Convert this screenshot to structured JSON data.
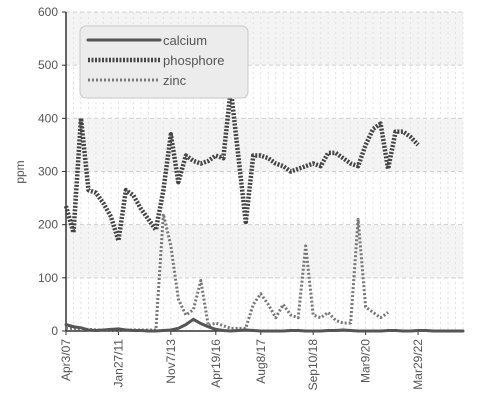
{
  "chart_data": {
    "type": "line",
    "ylabel": "ppm",
    "ylim": [
      0,
      600
    ],
    "yticks": [
      0,
      100,
      200,
      300,
      400,
      500,
      600
    ],
    "xtick_labels": [
      "Apr3/07",
      "Jan27/11",
      "Nov7/13",
      "Apr19/16",
      "Aug8/17",
      "Sep10/18",
      "Mar9/20",
      "Mar29/22"
    ],
    "xtick_index": [
      0,
      7,
      14,
      20,
      26,
      33,
      40,
      47
    ],
    "grid": true,
    "legend_position": "top-left",
    "series": [
      {
        "name": "calcium",
        "color": "#555555",
        "style": "solid",
        "values": [
          12,
          8,
          6,
          2,
          1,
          2,
          3,
          4,
          2,
          1,
          1,
          0,
          0,
          1,
          2,
          5,
          12,
          22,
          14,
          8,
          3,
          1,
          0,
          1,
          2,
          1,
          0,
          0,
          0,
          0,
          1,
          1,
          0,
          0,
          0,
          1,
          1,
          2,
          1,
          0,
          0,
          0,
          0,
          1,
          1,
          0,
          0,
          1,
          1,
          0,
          0,
          0,
          0,
          0
        ]
      },
      {
        "name": "phosphore",
        "color": "#444444",
        "style": "dense-dotted",
        "values": [
          235,
          185,
          400,
          265,
          260,
          240,
          215,
          170,
          265,
          255,
          230,
          210,
          190,
          265,
          370,
          280,
          330,
          320,
          315,
          320,
          330,
          325,
          455,
          330,
          205,
          330,
          330,
          325,
          315,
          310,
          300,
          305,
          310,
          315,
          310,
          335,
          335,
          325,
          315,
          310,
          350,
          380,
          390,
          305,
          375,
          375,
          365,
          350
        ]
      },
      {
        "name": "zinc",
        "color": "#777777",
        "style": "dotted",
        "values": [
          5,
          5,
          3,
          3,
          2,
          2,
          2,
          2,
          2,
          2,
          2,
          2,
          2,
          220,
          160,
          60,
          30,
          40,
          95,
          10,
          15,
          10,
          5,
          5,
          5,
          50,
          70,
          50,
          25,
          50,
          30,
          25,
          160,
          30,
          25,
          35,
          20,
          15,
          15,
          210,
          45,
          35,
          25,
          35
        ]
      }
    ]
  }
}
